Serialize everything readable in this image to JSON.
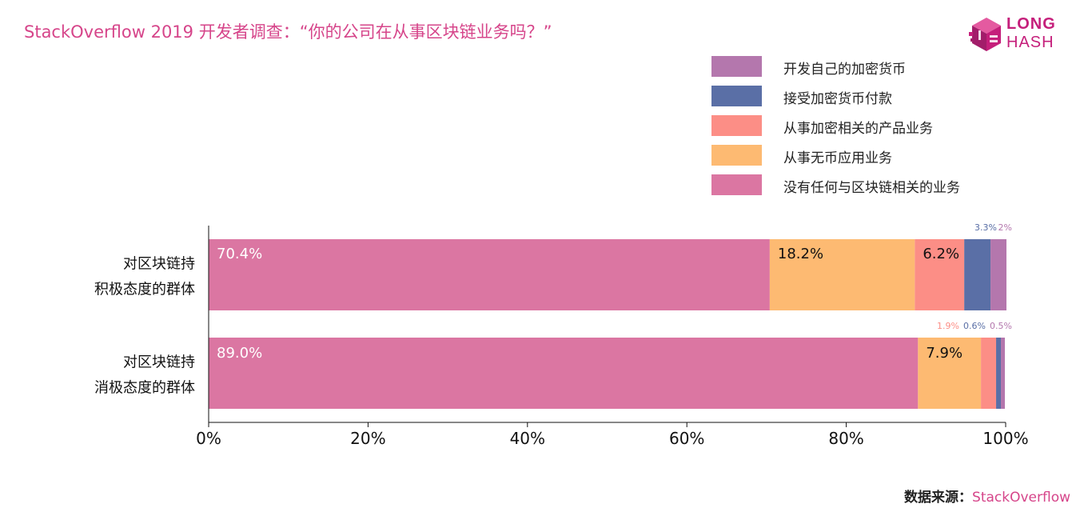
{
  "title": "StackOverflow 2019 开发者调查：“你的公司在从事区块链业务吗？”",
  "logo": {
    "line1": "LONG",
    "line2": "HASH"
  },
  "source": {
    "label": "数据来源：",
    "value": "StackOverflow"
  },
  "chart_data": {
    "type": "bar",
    "orientation": "horizontal",
    "stacked": true,
    "categories": [
      [
        "对区块链持",
        "积极态度的群体"
      ],
      [
        "对区块链持",
        "消极态度的群体"
      ]
    ],
    "series": [
      {
        "name": "没有任何与区块链相关的业务",
        "color": "#db76a2",
        "values": [
          70.4,
          89.0
        ],
        "labels": [
          "70.4%",
          "89.0%"
        ]
      },
      {
        "name": "从事无币应用业务",
        "color": "#fdba72",
        "values": [
          18.2,
          7.9
        ],
        "labels": [
          "18.2%",
          "7.9%"
        ]
      },
      {
        "name": "从事加密相关的产品业务",
        "color": "#fc8e86",
        "values": [
          6.2,
          1.9
        ],
        "labels": [
          "6.2%",
          "1.9%"
        ]
      },
      {
        "name": "接受加密货币付款",
        "color": "#5a6fa6",
        "values": [
          3.3,
          0.6
        ],
        "labels": [
          "3.3%",
          "0.6%"
        ]
      },
      {
        "name": "开发自己的加密货币",
        "color": "#b477ad",
        "values": [
          2.0,
          0.5
        ],
        "labels": [
          "2%",
          "0.5%"
        ]
      }
    ],
    "legend_order": [
      4,
      3,
      2,
      1,
      0
    ],
    "xlim": [
      0,
      100
    ],
    "xticks": [
      "0%",
      "20%",
      "40%",
      "60%",
      "80%",
      "100%"
    ],
    "grid": false,
    "legend_position": "top-right"
  }
}
